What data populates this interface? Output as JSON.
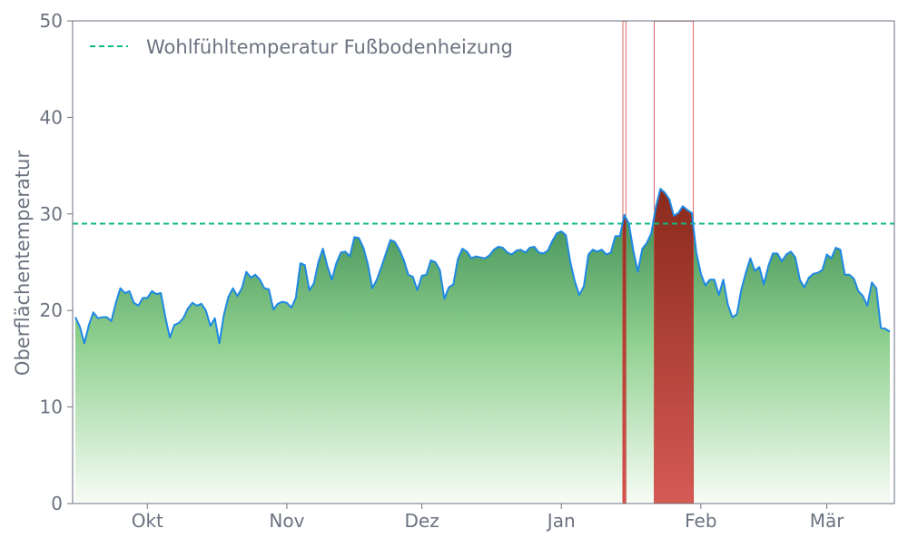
{
  "chart_data": {
    "type": "area",
    "title": "",
    "xlabel": "",
    "ylabel": "Oberflächentemperatur",
    "ylim": [
      0,
      50
    ],
    "yticks": [
      0,
      10,
      20,
      30,
      40,
      50
    ],
    "xticks": [
      {
        "date": "10-01",
        "label": "Okt"
      },
      {
        "date": "11-01",
        "label": "Nov"
      },
      {
        "date": "12-01",
        "label": "Dez"
      },
      {
        "date": "01-01",
        "label": "Jan"
      },
      {
        "date": "02-01",
        "label": "Feb"
      },
      {
        "date": "03-01",
        "label": "Mär"
      }
    ],
    "grid": false,
    "legend": {
      "placement": "top-left",
      "entries": [
        {
          "label": "Wohlfühltemperatur Fußbodenheizung",
          "style": "dashed"
        }
      ]
    },
    "threshold": {
      "value": 29,
      "label": "Wohlfühltemperatur Fußbodenheizung"
    },
    "highlight_ranges": [
      [
        "01-15",
        "01-15"
      ],
      [
        "01-22",
        "01-30"
      ]
    ],
    "colors": {
      "line": "#1e88e5",
      "threshold": "#10b981",
      "fill_top": "#3f8f55",
      "fill_bottom": "#f7fcf5",
      "highlight_top": "#8a2a1c",
      "highlight_bottom": "#d65a55",
      "axis": "#6b7280"
    },
    "x": [
      "09-15",
      "09-16",
      "09-17",
      "09-18",
      "09-19",
      "09-20",
      "09-21",
      "09-22",
      "09-23",
      "09-24",
      "09-25",
      "09-26",
      "09-27",
      "09-28",
      "09-29",
      "09-30",
      "10-01",
      "10-02",
      "10-03",
      "10-04",
      "10-05",
      "10-06",
      "10-07",
      "10-08",
      "10-09",
      "10-10",
      "10-11",
      "10-12",
      "10-13",
      "10-14",
      "10-15",
      "10-16",
      "10-17",
      "10-18",
      "10-19",
      "10-20",
      "10-21",
      "10-22",
      "10-23",
      "10-24",
      "10-25",
      "10-26",
      "10-27",
      "10-28",
      "10-29",
      "10-30",
      "10-31",
      "11-01",
      "11-02",
      "11-03",
      "11-04",
      "11-05",
      "11-06",
      "11-07",
      "11-08",
      "11-09",
      "11-10",
      "11-11",
      "11-12",
      "11-13",
      "11-14",
      "11-15",
      "11-16",
      "11-17",
      "11-18",
      "11-19",
      "11-20",
      "11-21",
      "11-22",
      "11-23",
      "11-24",
      "11-25",
      "11-26",
      "11-27",
      "11-28",
      "11-29",
      "11-30",
      "12-01",
      "12-02",
      "12-03",
      "12-04",
      "12-05",
      "12-06",
      "12-07",
      "12-08",
      "12-09",
      "12-10",
      "12-11",
      "12-12",
      "12-13",
      "12-14",
      "12-15",
      "12-16",
      "12-17",
      "12-18",
      "12-19",
      "12-20",
      "12-21",
      "12-22",
      "12-23",
      "12-24",
      "12-25",
      "12-26",
      "12-27",
      "12-28",
      "12-29",
      "12-30",
      "12-31",
      "01-01",
      "01-02",
      "01-03",
      "01-04",
      "01-05",
      "01-06",
      "01-07",
      "01-08",
      "01-09",
      "01-10",
      "01-11",
      "01-12",
      "01-13",
      "01-14",
      "01-15",
      "01-16",
      "01-17",
      "01-18",
      "01-19",
      "01-20",
      "01-21",
      "01-22",
      "01-23",
      "01-24",
      "01-25",
      "01-26",
      "01-27",
      "01-28",
      "01-29",
      "01-30",
      "01-31",
      "02-01",
      "02-02",
      "02-03",
      "02-04",
      "02-05",
      "02-06",
      "02-07",
      "02-08",
      "02-09",
      "02-10",
      "02-11",
      "02-12",
      "02-13",
      "02-14",
      "02-15",
      "02-16",
      "02-17",
      "02-18",
      "02-19",
      "02-20",
      "02-21",
      "02-22",
      "02-23",
      "02-24",
      "02-25",
      "02-26",
      "02-27",
      "02-28",
      "03-01",
      "03-02",
      "03-03",
      "03-04",
      "03-05",
      "03-06",
      "03-07",
      "03-08",
      "03-09",
      "03-10",
      "03-11",
      "03-12",
      "03-13",
      "03-14",
      "03-15"
    ],
    "y": [
      19.3,
      18.3,
      16.6,
      18.5,
      19.8,
      19.2,
      19.3,
      19.3,
      18.9,
      20.8,
      22.3,
      21.8,
      22.0,
      20.8,
      20.5,
      21.3,
      21.3,
      22.0,
      21.7,
      21.8,
      19.3,
      17.2,
      18.5,
      18.7,
      19.2,
      20.2,
      20.8,
      20.5,
      20.7,
      20.0,
      18.4,
      19.2,
      16.6,
      19.5,
      21.4,
      22.3,
      21.5,
      22.3,
      24.0,
      23.4,
      23.7,
      23.2,
      22.3,
      22.2,
      20.1,
      20.7,
      20.9,
      20.8,
      20.3,
      21.3,
      24.9,
      24.7,
      22.1,
      22.8,
      25.0,
      26.4,
      24.6,
      23.2,
      24.9,
      26.0,
      26.1,
      25.6,
      27.6,
      27.5,
      26.5,
      24.8,
      22.3,
      23.2,
      24.5,
      25.9,
      27.3,
      27.1,
      26.3,
      25.2,
      23.7,
      23.5,
      22.1,
      23.6,
      23.7,
      25.2,
      25.0,
      24.2,
      21.2,
      22.4,
      22.7,
      25.3,
      26.4,
      26.1,
      25.4,
      25.6,
      25.5,
      25.4,
      25.7,
      26.3,
      26.6,
      26.5,
      26.0,
      25.8,
      26.2,
      26.3,
      26.0,
      26.5,
      26.6,
      26.0,
      25.9,
      26.2,
      27.2,
      28.0,
      28.2,
      27.8,
      25.0,
      23.0,
      21.6,
      22.5,
      25.8,
      26.3,
      26.1,
      26.3,
      25.8,
      26.0,
      27.7,
      27.7,
      29.9,
      29.0,
      26.2,
      24.0,
      26.4,
      27.0,
      28.0,
      30.7,
      32.6,
      32.2,
      31.5,
      29.8,
      30.1,
      30.8,
      30.4,
      30.1,
      26.0,
      23.8,
      22.6,
      23.2,
      23.2,
      21.6,
      23.2,
      20.6,
      19.3,
      19.6,
      22.2,
      23.9,
      25.4,
      24.1,
      24.5,
      22.7,
      24.6,
      25.9,
      25.9,
      25.1,
      25.8,
      26.1,
      25.5,
      23.2,
      22.4,
      23.4,
      23.8,
      23.9,
      24.2,
      25.8,
      25.4,
      26.5,
      26.3,
      23.7,
      23.7,
      23.3,
      22.0,
      21.5,
      20.5,
      22.9,
      22.3,
      18.2,
      18.1,
      17.8
    ]
  }
}
